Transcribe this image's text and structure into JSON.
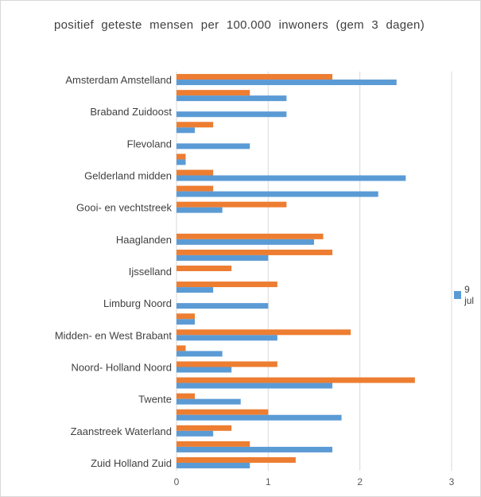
{
  "chart_data": {
    "type": "bar",
    "orientation": "horizontal",
    "title": "positief geteste mensen per 100.000 inwoners (gem 3 dagen)",
    "categories": [
      "Amsterdam Amstelland",
      "",
      "Braband Zuidoost",
      "",
      "Flevoland",
      "",
      "Gelderland midden",
      "",
      "Gooi- en vechtstreek",
      "",
      "Haaglanden",
      "",
      "Ijsselland",
      "",
      "Limburg Noord",
      "",
      "Midden- en West Brabant",
      "",
      "Noord- Holland Noord",
      "",
      "Twente",
      "",
      "Zaanstreek Waterland",
      "",
      "Zuid Holland Zuid"
    ],
    "series": [
      {
        "name": "9 jul",
        "color": "#5b9bd5",
        "values": [
          2.4,
          1.2,
          1.2,
          0.2,
          0.8,
          0.1,
          2.5,
          2.2,
          0.5,
          0,
          1.5,
          1.0,
          0,
          0.4,
          1.0,
          0.2,
          1.1,
          0.5,
          0.6,
          1.7,
          0.7,
          1.8,
          0.4,
          1.7,
          0.8
        ]
      },
      {
        "name": "",
        "color": "#ed7d31",
        "values": [
          1.7,
          0.8,
          0,
          0.4,
          0,
          0.1,
          0.4,
          0.4,
          1.2,
          0,
          1.6,
          1.7,
          0.6,
          1.1,
          0,
          0.2,
          1.9,
          0.1,
          1.1,
          2.6,
          0.2,
          1.0,
          0.6,
          0.8,
          1.3
        ]
      }
    ],
    "x_ticks": [
      "0",
      "1",
      "2",
      "3"
    ],
    "xlim": [
      0,
      3
    ],
    "grid": "vertical",
    "legend": "right"
  }
}
